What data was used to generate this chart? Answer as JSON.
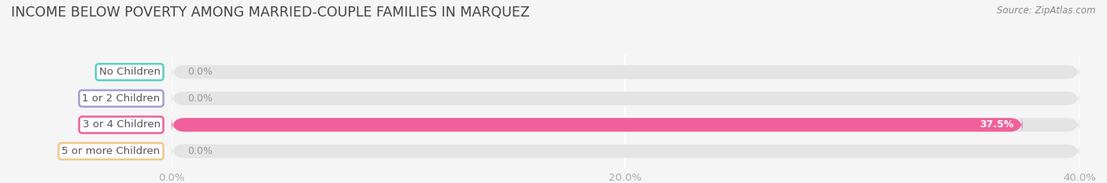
{
  "title": "INCOME BELOW POVERTY AMONG MARRIED-COUPLE FAMILIES IN MARQUEZ",
  "source": "Source: ZipAtlas.com",
  "categories": [
    "No Children",
    "1 or 2 Children",
    "3 or 4 Children",
    "5 or more Children"
  ],
  "values": [
    0.0,
    0.0,
    37.5,
    0.0
  ],
  "bar_colors": [
    "#5bcfbf",
    "#a0a0d0",
    "#f0609a",
    "#f0c888"
  ],
  "background_color": "#f5f5f5",
  "bar_background_color": "#e4e4e4",
  "xlim_max": 40,
  "xticks": [
    0.0,
    20.0,
    40.0
  ],
  "xtick_labels": [
    "0.0%",
    "20.0%",
    "40.0%"
  ],
  "bar_height": 0.52,
  "title_fontsize": 12.5,
  "label_fontsize": 9.5,
  "value_fontsize": 9,
  "source_fontsize": 8.5,
  "title_color": "#444444",
  "tick_color": "#aaaaaa",
  "source_color": "#888888",
  "label_text_color": "#555555",
  "zero_value_color": "#999999",
  "grid_color": "#ffffff"
}
